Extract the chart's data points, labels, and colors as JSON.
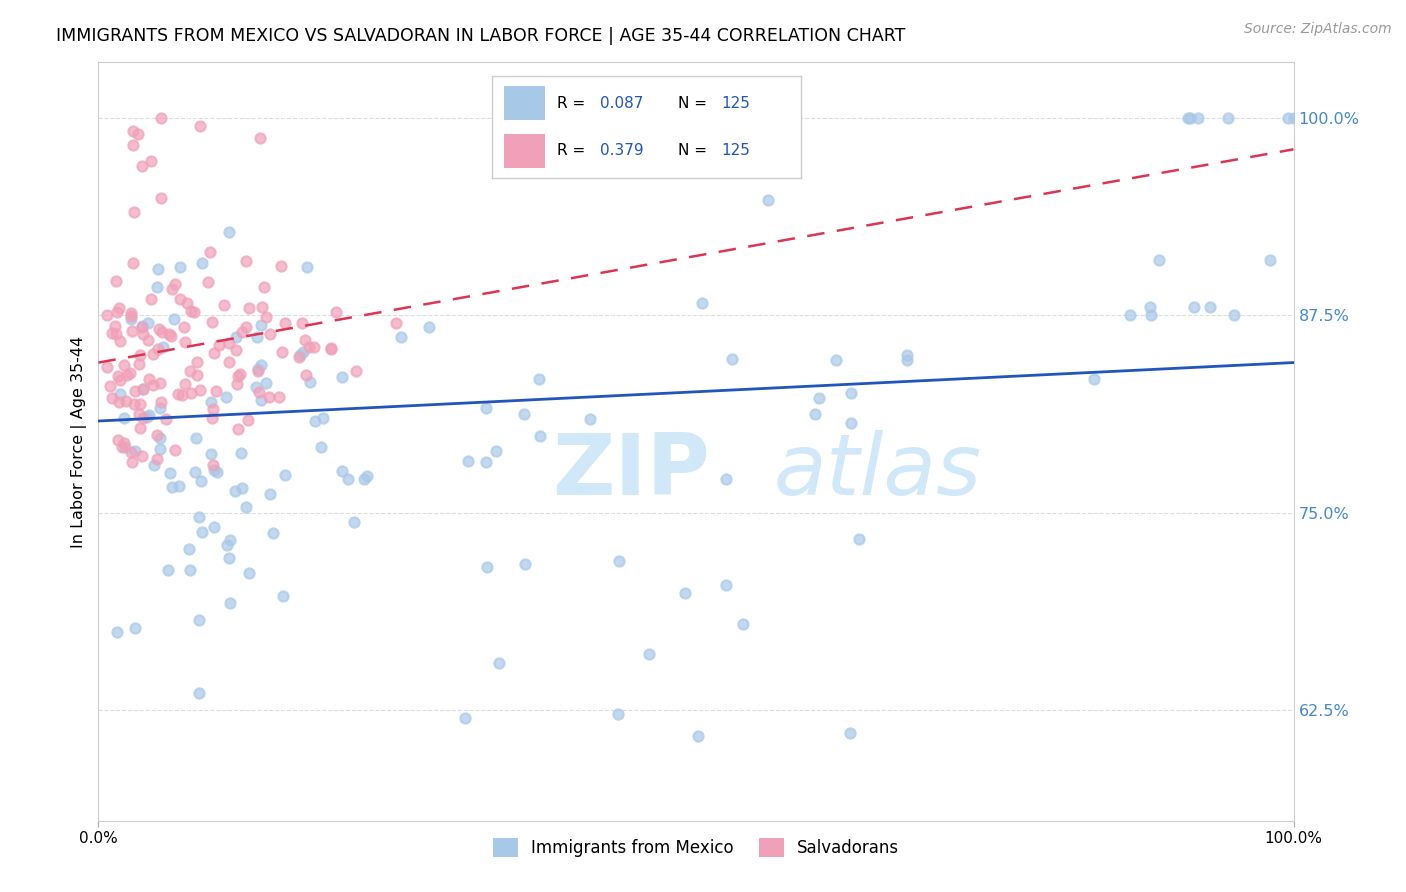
{
  "title": "IMMIGRANTS FROM MEXICO VS SALVADORAN IN LABOR FORCE | AGE 35-44 CORRELATION CHART",
  "source": "Source: ZipAtlas.com",
  "ylabel": "In Labor Force | Age 35-44",
  "xlim": [
    0.0,
    1.0
  ],
  "ylim": [
    0.555,
    1.035
  ],
  "legend_mexico_r": "0.087",
  "legend_mexico_n": "125",
  "legend_salvador_r": "0.379",
  "legend_salvador_n": "125",
  "mexico_color": "#a8c8e8",
  "salvador_color": "#f0a0b8",
  "mexico_line_color": "#2255bb",
  "salvador_line_color": "#dd3355",
  "watermark_color": "#d0e8f8",
  "background_color": "#ffffff",
  "grid_color": "#dddddd",
  "tick_color": "#4488cc",
  "mexico_line_start_y": 0.808,
  "mexico_line_end_y": 0.845,
  "salvador_line_start_y": 0.845,
  "salvador_line_end_y": 0.98
}
